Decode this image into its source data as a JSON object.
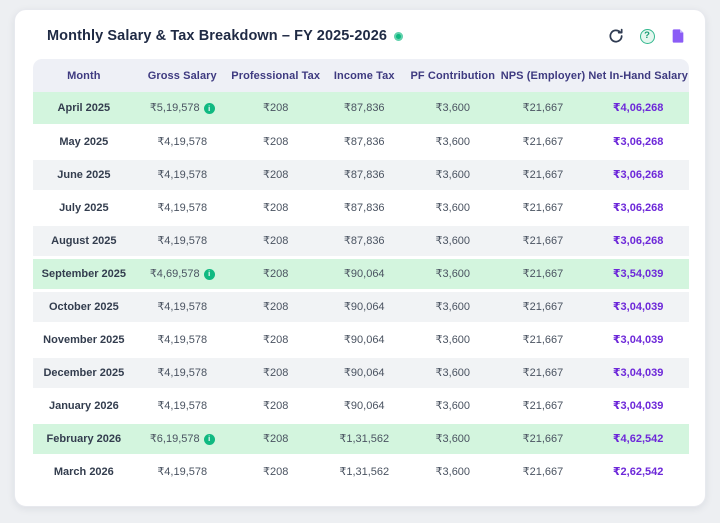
{
  "colors": {
    "accent_green": "#10b981",
    "highlight_row": "#d3f5de",
    "stripe_row": "#f1f3f5",
    "header_row_bg": "#eef0f6",
    "header_text": "#3e3a80",
    "net_value": "#6d28d9",
    "title_text": "#1f2a44",
    "doc_icon": "#8b5cf6",
    "refresh_icon": "#2f3b52"
  },
  "header": {
    "title": "Monthly Salary & Tax Breakdown – FY 2025-2026",
    "status_dot": "green",
    "help_glyph": "?",
    "icons": [
      "refresh-icon",
      "help-icon",
      "document-icon"
    ]
  },
  "table": {
    "columns": [
      "Month",
      "Gross Salary",
      "Professional Tax",
      "Income Tax",
      "PF Contribution",
      "NPS (Employer)",
      "Net In-Hand Salary"
    ],
    "rows": [
      {
        "month": "April 2025",
        "gross": "₹5,19,578",
        "gross_info": true,
        "professional_tax": "₹208",
        "income_tax": "₹87,836",
        "pf": "₹3,600",
        "nps": "₹21,667",
        "net": "₹4,06,268",
        "variant": "highlight"
      },
      {
        "month": "May 2025",
        "gross": "₹4,19,578",
        "gross_info": false,
        "professional_tax": "₹208",
        "income_tax": "₹87,836",
        "pf": "₹3,600",
        "nps": "₹21,667",
        "net": "₹3,06,268",
        "variant": "white"
      },
      {
        "month": "June 2025",
        "gross": "₹4,19,578",
        "gross_info": false,
        "professional_tax": "₹208",
        "income_tax": "₹87,836",
        "pf": "₹3,600",
        "nps": "₹21,667",
        "net": "₹3,06,268",
        "variant": "gray"
      },
      {
        "month": "July 2025",
        "gross": "₹4,19,578",
        "gross_info": false,
        "professional_tax": "₹208",
        "income_tax": "₹87,836",
        "pf": "₹3,600",
        "nps": "₹21,667",
        "net": "₹3,06,268",
        "variant": "white"
      },
      {
        "month": "August 2025",
        "gross": "₹4,19,578",
        "gross_info": false,
        "professional_tax": "₹208",
        "income_tax": "₹87,836",
        "pf": "₹3,600",
        "nps": "₹21,667",
        "net": "₹3,06,268",
        "variant": "gray"
      },
      {
        "month": "September 2025",
        "gross": "₹4,69,578",
        "gross_info": true,
        "professional_tax": "₹208",
        "income_tax": "₹90,064",
        "pf": "₹3,600",
        "nps": "₹21,667",
        "net": "₹3,54,039",
        "variant": "highlight"
      },
      {
        "month": "October 2025",
        "gross": "₹4,19,578",
        "gross_info": false,
        "professional_tax": "₹208",
        "income_tax": "₹90,064",
        "pf": "₹3,600",
        "nps": "₹21,667",
        "net": "₹3,04,039",
        "variant": "gray"
      },
      {
        "month": "November 2025",
        "gross": "₹4,19,578",
        "gross_info": false,
        "professional_tax": "₹208",
        "income_tax": "₹90,064",
        "pf": "₹3,600",
        "nps": "₹21,667",
        "net": "₹3,04,039",
        "variant": "white"
      },
      {
        "month": "December 2025",
        "gross": "₹4,19,578",
        "gross_info": false,
        "professional_tax": "₹208",
        "income_tax": "₹90,064",
        "pf": "₹3,600",
        "nps": "₹21,667",
        "net": "₹3,04,039",
        "variant": "gray"
      },
      {
        "month": "January 2026",
        "gross": "₹4,19,578",
        "gross_info": false,
        "professional_tax": "₹208",
        "income_tax": "₹90,064",
        "pf": "₹3,600",
        "nps": "₹21,667",
        "net": "₹3,04,039",
        "variant": "white"
      },
      {
        "month": "February 2026",
        "gross": "₹6,19,578",
        "gross_info": true,
        "professional_tax": "₹208",
        "income_tax": "₹1,31,562",
        "pf": "₹3,600",
        "nps": "₹21,667",
        "net": "₹4,62,542",
        "variant": "highlight"
      },
      {
        "month": "March 2026",
        "gross": "₹4,19,578",
        "gross_info": false,
        "professional_tax": "₹208",
        "income_tax": "₹1,31,562",
        "pf": "₹3,600",
        "nps": "₹21,667",
        "net": "₹2,62,542",
        "variant": "white"
      }
    ]
  }
}
